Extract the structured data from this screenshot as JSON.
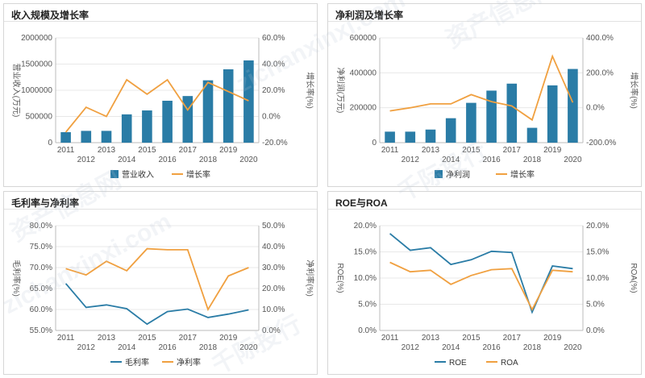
{
  "charts": [
    {
      "title": "收入规模及增长率",
      "chart_data": {
        "type": "bar+line",
        "categories": [
          "2011",
          "2012",
          "2013",
          "2014",
          "2015",
          "2016",
          "2017",
          "2018",
          "2019",
          "2020"
        ],
        "series": [
          {
            "name": "营业收入",
            "kind": "bar",
            "axis": "left",
            "values": [
              200000,
              225000,
              225000,
              540000,
              615000,
              800000,
              890000,
              1190000,
              1400000,
              1570000
            ]
          },
          {
            "name": "增长率",
            "kind": "line",
            "axis": "right",
            "values": [
              -12,
              7,
              0,
              28,
              17,
              28,
              5,
              26,
              19,
              12
            ]
          }
        ],
        "ylabel": "营业收入(万元)",
        "y2label": "增长率(%)",
        "ylim": [
          0,
          2000000
        ],
        "y2lim": [
          -20,
          60
        ],
        "yticks": [
          "0",
          "500000",
          "1000000",
          "1500000",
          "2000000"
        ],
        "y2ticks": [
          "-20.0%",
          "0.0%",
          "20.0%",
          "40.0%",
          "60.0%"
        ],
        "legend": "bottom",
        "grid": true
      }
    },
    {
      "title": "净利润及增长率",
      "chart_data": {
        "type": "bar+line",
        "categories": [
          "2011",
          "2012",
          "2013",
          "2014",
          "2015",
          "2016",
          "2017",
          "2018",
          "2019",
          "2020"
        ],
        "series": [
          {
            "name": "净利润",
            "kind": "bar",
            "axis": "left",
            "values": [
              63000,
              63000,
              75000,
              140000,
              228000,
              298000,
              338000,
              85000,
              328000,
              422000
            ]
          },
          {
            "name": "增长率",
            "kind": "line",
            "axis": "right",
            "values": [
              -18,
              0,
              22,
              22,
              75,
              35,
              10,
              -70,
              295,
              30
            ]
          }
        ],
        "ylabel": "净利润(万元)",
        "y2label": "增长率(%)",
        "ylim": [
          0,
          600000
        ],
        "y2lim": [
          -200,
          400
        ],
        "yticks": [
          "0",
          "200000",
          "400000",
          "600000"
        ],
        "y2ticks": [
          "-200.0%",
          "0.0%",
          "200.0%",
          "400.0%"
        ],
        "legend": "bottom",
        "grid": true
      }
    },
    {
      "title": "毛利率与净利率",
      "chart_data": {
        "type": "line",
        "categories": [
          "2011",
          "2012",
          "2013",
          "2014",
          "2015",
          "2016",
          "2017",
          "2018",
          "2019",
          "2020"
        ],
        "series": [
          {
            "name": "毛利率",
            "axis": "left",
            "values": [
              66.2,
              60.5,
              61.1,
              60.2,
              56.5,
              59.5,
              60.1,
              58.1,
              58.9,
              59.9
            ]
          },
          {
            "name": "净利率",
            "axis": "right",
            "values": [
              29.5,
              26.5,
              33,
              28.5,
              39,
              38.5,
              38.5,
              10,
              26,
              30
            ]
          }
        ],
        "ylabel": "毛利率(%)",
        "y2label": "净利率(%)",
        "ylim": [
          55,
          80
        ],
        "y2lim": [
          0,
          50
        ],
        "yticks": [
          "55.0%",
          "60.0%",
          "65.0%",
          "70.0%",
          "75.0%",
          "80.0%"
        ],
        "y2ticks": [
          "0.0%",
          "10.0%",
          "20.0%",
          "30.0%",
          "40.0%",
          "50.0%"
        ],
        "legend": "bottom",
        "grid": true
      }
    },
    {
      "title": "ROE与ROA",
      "chart_data": {
        "type": "line",
        "categories": [
          "2011",
          "2012",
          "2013",
          "2014",
          "2015",
          "2016",
          "2017",
          "2018",
          "2019",
          "2020"
        ],
        "series": [
          {
            "name": "ROE",
            "axis": "left",
            "values": [
              18.5,
              15.3,
              15.8,
              12.6,
              13.5,
              15.1,
              14.9,
              3.5,
              12.3,
              11.8
            ]
          },
          {
            "name": "ROA",
            "axis": "right",
            "values": [
              13.0,
              11.2,
              11.5,
              8.8,
              10.5,
              11.6,
              11.8,
              4.0,
              11.5,
              11.2
            ]
          }
        ],
        "ylabel": "ROE(%)",
        "y2label": "ROA(%)",
        "ylim": [
          0,
          20
        ],
        "y2lim": [
          0,
          20
        ],
        "yticks": [
          "0.0%",
          "5.0%",
          "10.0%",
          "15.0%",
          "20.0%"
        ],
        "y2ticks": [
          "0.0%",
          "5.0%",
          "10.0%",
          "15.0%",
          "20.0%"
        ],
        "legend": "bottom",
        "grid": true
      }
    }
  ],
  "colors": {
    "bar": "#2a7ca6",
    "line1": "#2a7ca6",
    "line2": "#f0a040",
    "grid": "#e8e8e8",
    "axis": "#bbbbbb"
  },
  "watermarks": [
    "资产信息网",
    "zichanxinxi.com",
    "千际投行"
  ]
}
